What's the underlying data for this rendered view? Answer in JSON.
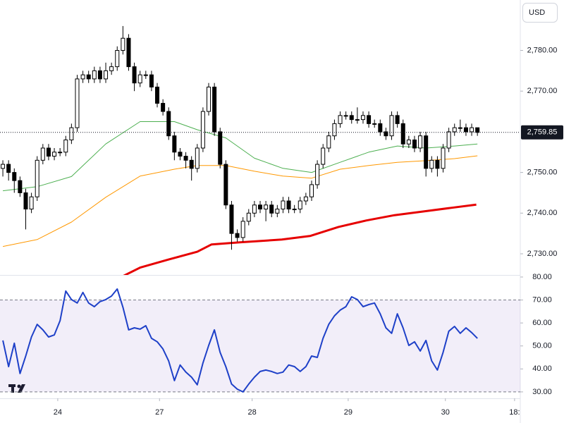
{
  "toolbar": {
    "currency": "USD"
  },
  "chart_data": [
    {
      "type": "candlestick",
      "up_color": "#ffffff",
      "down_color": "#000000",
      "open": [
        2751,
        2752,
        2750,
        2748,
        2745,
        2741,
        2744,
        2753,
        2756,
        2754,
        2755,
        2755,
        2758,
        2761,
        2773,
        2774,
        2773,
        2775,
        2773,
        2775,
        2776,
        2780,
        2783,
        2776,
        2772,
        2774,
        2774,
        2771,
        2767,
        2765,
        2759,
        2755,
        2754,
        2753,
        2751,
        2756,
        2765,
        2771,
        2760,
        2752,
        2742,
        2735,
        2734,
        2738,
        2740,
        2742,
        2741,
        2742,
        2740,
        2741,
        2743,
        2741,
        2741,
        2743,
        2744,
        2747,
        2752,
        2756,
        2759,
        2762,
        2764,
        2764,
        2763,
        2763,
        2764,
        2762,
        2762,
        2760,
        2759,
        2764,
        2762,
        2757,
        2758,
        2756,
        2759,
        2751,
        2753,
        2751,
        2756,
        2760,
        2761,
        2761,
        2760,
        2761
      ],
      "high": [
        2753,
        2753,
        2751,
        2749,
        2746,
        2745,
        2754,
        2757,
        2757,
        2756,
        2756,
        2759,
        2762,
        2774,
        2775,
        2775,
        2776,
        2776,
        2777,
        2777,
        2781,
        2786,
        2784,
        2777,
        2775,
        2775,
        2775,
        2772,
        2768,
        2766,
        2760,
        2756,
        2755,
        2754,
        2757,
        2766,
        2772,
        2772,
        2761,
        2753,
        2743,
        2736,
        2739,
        2741,
        2743,
        2743,
        2743,
        2743,
        2742,
        2744,
        2744,
        2742,
        2744,
        2745,
        2748,
        2753,
        2757,
        2760,
        2763,
        2765,
        2765,
        2765,
        2766,
        2765,
        2765,
        2763,
        2763,
        2761,
        2765,
        2765,
        2763,
        2759,
        2759,
        2760,
        2760,
        2754,
        2754,
        2757,
        2761,
        2762,
        2763,
        2762,
        2762,
        2761
      ],
      "low": [
        2749,
        2748,
        2745,
        2744,
        2736,
        2740,
        2743,
        2752,
        2753,
        2753,
        2754,
        2754,
        2757,
        2760,
        2772,
        2772,
        2772,
        2772,
        2772,
        2774,
        2775,
        2779,
        2775,
        2770,
        2771,
        2773,
        2770,
        2766,
        2764,
        2758,
        2753,
        2753,
        2751,
        2748,
        2750,
        2755,
        2764,
        2759,
        2751,
        2741,
        2731,
        2733,
        2733,
        2737,
        2739,
        2740,
        2738,
        2739,
        2739,
        2740,
        2740,
        2740,
        2740,
        2742,
        2743,
        2746,
        2751,
        2755,
        2758,
        2761,
        2763,
        2762,
        2762,
        2762,
        2761,
        2761,
        2759,
        2758,
        2758,
        2761,
        2756,
        2756,
        2755,
        2755,
        2749,
        2750,
        2749,
        2750,
        2755,
        2759,
        2760,
        2759,
        2759,
        2759
      ],
      "close": [
        2752,
        2750,
        2748,
        2745,
        2741,
        2744,
        2753,
        2756,
        2754,
        2755,
        2755,
        2758,
        2761,
        2773,
        2774,
        2773,
        2775,
        2773,
        2775,
        2776,
        2780,
        2783,
        2776,
        2772,
        2774,
        2774,
        2771,
        2767,
        2765,
        2759,
        2755,
        2754,
        2753,
        2751,
        2756,
        2765,
        2771,
        2760,
        2752,
        2742,
        2735,
        2734,
        2738,
        2740,
        2742,
        2741,
        2742,
        2740,
        2741,
        2743,
        2741,
        2741,
        2743,
        2744,
        2747,
        2752,
        2756,
        2759,
        2762,
        2764,
        2764,
        2763,
        2763,
        2764,
        2762,
        2762,
        2760,
        2759,
        2764,
        2762,
        2757,
        2758,
        2756,
        2759,
        2751,
        2753,
        2751,
        2756,
        2760,
        2761,
        2761,
        2760,
        2761,
        2759.85
      ],
      "series": [
        {
          "color": "#4caf50",
          "width": 1,
          "x": [
            0,
            6,
            12,
            18,
            24,
            30,
            34,
            39,
            44,
            49,
            54,
            59,
            64,
            69,
            74,
            79,
            83
          ],
          "values": [
            2745.5,
            2746.5,
            2749,
            2757,
            2762.5,
            2762.5,
            2760.5,
            2758.5,
            2753.5,
            2751,
            2750,
            2752.5,
            2755,
            2756.5,
            2756,
            2756.5,
            2757
          ]
        },
        {
          "color": "#ff9800",
          "width": 1,
          "x": [
            0,
            6,
            12,
            18,
            24,
            30,
            34,
            39,
            44,
            49,
            54,
            59,
            64,
            69,
            74,
            79,
            83
          ],
          "values": [
            2731.8,
            2733.5,
            2737.8,
            2743.9,
            2749.1,
            2750.8,
            2751.7,
            2751.7,
            2750.3,
            2749.1,
            2748.6,
            2750.8,
            2751.7,
            2752.5,
            2752.9,
            2753.4,
            2754.1
          ]
        },
        {
          "color": "#e60000",
          "width": 3,
          "x": [
            21,
            24,
            29,
            34,
            36.5,
            41.4,
            48.8,
            53.8,
            58.7,
            63.6,
            68.5,
            73.5,
            78.4,
            82.8
          ],
          "values": [
            2724.5,
            2726.6,
            2728.6,
            2730.5,
            2732.3,
            2732.8,
            2733.5,
            2734.4,
            2736.6,
            2738.2,
            2739.5,
            2740.4,
            2741.3,
            2742.1
          ]
        }
      ],
      "last_price": {
        "value": 2759.85,
        "label": "2,759.85"
      },
      "xlim": [
        -0.5,
        90.5
      ],
      "ylim": [
        2724.8,
        2792.4
      ],
      "yticks": [
        {
          "value": 2730,
          "label": "2,730.00"
        },
        {
          "value": 2740,
          "label": "2,740.00"
        },
        {
          "value": 2750,
          "label": "2,750.00"
        },
        {
          "value": 2770,
          "label": "2,770.00"
        },
        {
          "value": 2780,
          "label": "2,780.00"
        }
      ]
    },
    {
      "type": "line",
      "color": "#1e40c8",
      "values": [
        52.4,
        41.0,
        51.2,
        38.0,
        45.6,
        53.9,
        59.4,
        57.0,
        53.9,
        54.8,
        61.0,
        73.9,
        70.2,
        68.7,
        73.3,
        68.7,
        67.1,
        69.3,
        70.2,
        71.7,
        74.8,
        66.8,
        57.0,
        57.9,
        57.3,
        58.8,
        53.3,
        51.8,
        48.7,
        43.5,
        34.9,
        41.7,
        38.6,
        36.4,
        33.1,
        42.6,
        50.2,
        57.0,
        47.2,
        41.0,
        33.4,
        31.2,
        30.0,
        33.4,
        36.4,
        38.9,
        39.5,
        38.9,
        38.0,
        38.6,
        41.7,
        41.0,
        38.9,
        41.0,
        45.6,
        45.0,
        53.3,
        59.4,
        63.1,
        65.6,
        67.1,
        71.4,
        70.2,
        67.1,
        68.0,
        68.7,
        64.0,
        57.9,
        55.5,
        64.0,
        57.9,
        50.2,
        51.8,
        47.8,
        52.4,
        43.5,
        39.5,
        47.2,
        56.4,
        58.5,
        55.5,
        57.9,
        55.8,
        53.3
      ],
      "band": [
        30,
        70
      ],
      "xlim": [
        -0.5,
        90.5
      ],
      "ylim": [
        27.2,
        80.9
      ],
      "yticks": [
        {
          "value": 30,
          "label": "30.00"
        },
        {
          "value": 40,
          "label": "40.00"
        },
        {
          "value": 50,
          "label": "50.00"
        },
        {
          "value": 60,
          "label": "60.00"
        },
        {
          "value": 70,
          "label": "70.00"
        },
        {
          "value": 80,
          "label": "80.00"
        }
      ],
      "xticks": [
        {
          "value": 9.6,
          "label": "24"
        },
        {
          "value": 27.4,
          "label": "27"
        },
        {
          "value": 43.6,
          "label": "28"
        },
        {
          "value": 60.4,
          "label": "29"
        },
        {
          "value": 77.4,
          "label": "30"
        },
        {
          "value": 89.5,
          "label": "18:"
        }
      ]
    }
  ]
}
